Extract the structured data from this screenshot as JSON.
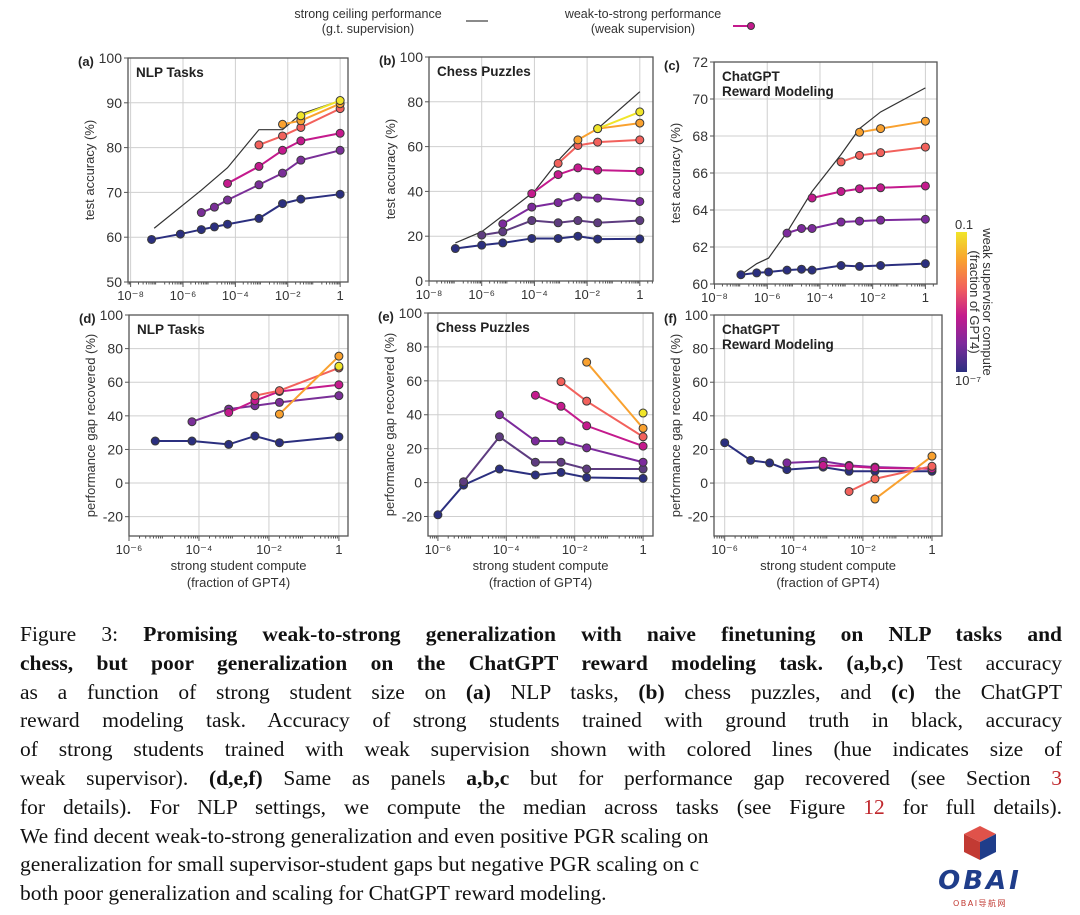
{
  "legend": {
    "ceiling_line1": "strong ceiling performance",
    "ceiling_line2": "(g.t. supervision)",
    "w2s_line1": "weak-to-strong performance",
    "w2s_line2": "(weak supervision)"
  },
  "colorbar": {
    "label_line1": "weak supervisor compute",
    "label_line2": "(fraction of GPT4)",
    "top_label": "0.1",
    "bottom_label": "10⁻⁷",
    "colors": [
      "#f0e52a",
      "#f9a12f",
      "#f2615c",
      "#c41a8d",
      "#7c2a9c",
      "#2b2f7f"
    ]
  },
  "colors": {
    "ceiling": "#333333",
    "marker_edge": "#3a3a3a",
    "grid": "#cfcfcf",
    "frame": "#555555"
  },
  "chart_data": [
    {
      "id": "a",
      "panel_label": "(a)",
      "type": "line",
      "title": "NLP Tasks",
      "ylabel": "test accuracy (%)",
      "xlabel": "",
      "xlabel2": "",
      "x_scale": "log10",
      "xlim_log10": [
        -8.1,
        0.3
      ],
      "ylim": [
        50,
        100
      ],
      "yticks": [
        50,
        60,
        70,
        80,
        90,
        100
      ],
      "xticks_log10": [
        -8,
        -6,
        -4,
        -2,
        0
      ],
      "xtick_labels": [
        "10⁻⁸",
        "10⁻⁶",
        "10⁻⁴",
        "10⁻²",
        "1"
      ],
      "ceiling": {
        "x_log10": [
          -7.1,
          -5.3,
          -4.3,
          -3.1,
          -2.2,
          -1.5,
          0
        ],
        "y": [
          62,
          70.5,
          75.5,
          84,
          84,
          87.5,
          90.5
        ]
      },
      "series": [
        {
          "color": "#2b2f7f",
          "x_log10": [
            -7.2,
            -6.1,
            -5.3,
            -4.8,
            -4.3,
            -3.1,
            -2.2,
            -1.5,
            0
          ],
          "y": [
            59.5,
            60.7,
            61.7,
            62.3,
            62.9,
            64.2,
            67.5,
            68.5,
            69.6
          ]
        },
        {
          "color": "#7a2f98",
          "x_log10": [
            -5.3,
            -4.8,
            -4.3,
            -3.1,
            -2.2,
            -1.5,
            0
          ],
          "y": [
            65.5,
            66.7,
            68.3,
            71.7,
            74.3,
            77.2,
            79.4
          ]
        },
        {
          "color": "#c41a8d",
          "x_log10": [
            -4.3,
            -3.1,
            -2.2,
            -1.5,
            0
          ],
          "y": [
            72,
            75.8,
            79.4,
            81.5,
            83.2
          ]
        },
        {
          "color": "#f2615c",
          "x_log10": [
            -3.1,
            -2.2,
            -1.5,
            0
          ],
          "y": [
            80.6,
            82.6,
            84.5,
            88.7
          ]
        },
        {
          "color": "#f9a12f",
          "x_log10": [
            -2.2,
            -1.5,
            0
          ],
          "y": [
            85.2,
            86,
            89.8
          ]
        },
        {
          "color": "#f0e52a",
          "x_log10": [
            -1.5,
            0
          ],
          "y": [
            87.1,
            90.5
          ]
        }
      ]
    },
    {
      "id": "b",
      "panel_label": "(b)",
      "type": "line",
      "title": "Chess Puzzles",
      "ylabel": "test accuracy (%)",
      "xlabel": "",
      "xlabel2": "",
      "x_scale": "log10",
      "xlim_log10": [
        -8.0,
        0.5
      ],
      "ylim": [
        0,
        100
      ],
      "yticks": [
        0,
        20,
        40,
        60,
        80,
        100
      ],
      "xticks_log10": [
        -8,
        -6,
        -4,
        -2,
        0
      ],
      "xtick_labels": [
        "10⁻⁸",
        "10⁻⁶",
        "10⁻⁴",
        "10⁻²",
        "1"
      ],
      "ceiling": {
        "x_log10": [
          -7,
          -6,
          -4,
          -3,
          -2.35,
          -1.6,
          0
        ],
        "y": [
          17,
          22,
          40,
          55,
          63,
          68,
          84.5
        ]
      },
      "series": [
        {
          "color": "#2b2f7f",
          "x_log10": [
            -7,
            -6,
            -5.2,
            -4.1,
            -3.1,
            -2.35,
            -1.6,
            0
          ],
          "y": [
            14.5,
            16,
            17,
            19,
            19,
            20,
            18.7,
            18.8
          ]
        },
        {
          "color": "#5e3c80",
          "x_log10": [
            -6,
            -5.2,
            -4.1,
            -3.1,
            -2.35,
            -1.6,
            0
          ],
          "y": [
            20.5,
            22,
            27,
            26,
            27,
            26,
            27
          ]
        },
        {
          "color": "#7c2a9c",
          "x_log10": [
            -5.2,
            -4.1,
            -3.1,
            -2.35,
            -1.6,
            0
          ],
          "y": [
            25.5,
            33,
            35,
            37.5,
            37,
            35.5
          ]
        },
        {
          "color": "#c41a8d",
          "x_log10": [
            -4.1,
            -3.1,
            -2.35,
            -1.6,
            0
          ],
          "y": [
            39,
            47.5,
            50.5,
            49.5,
            49
          ]
        },
        {
          "color": "#f2615c",
          "x_log10": [
            -3.1,
            -2.35,
            -1.6,
            0
          ],
          "y": [
            52.5,
            60.5,
            62,
            63
          ]
        },
        {
          "color": "#f9a12f",
          "x_log10": [
            -2.35,
            -1.6,
            0
          ],
          "y": [
            63,
            68,
            70.5
          ]
        },
        {
          "color": "#f0e52a",
          "x_log10": [
            -1.6,
            0
          ],
          "y": [
            68,
            75.5
          ]
        }
      ]
    },
    {
      "id": "c",
      "panel_label": "(c)",
      "type": "line",
      "title": "ChatGPT",
      "title2": "Reward Modeling",
      "ylabel": "test accuracy (%)",
      "xlabel": "",
      "xlabel2": "",
      "x_scale": "log10",
      "xlim_log10": [
        -8.02,
        0.44
      ],
      "ylim": [
        60,
        72
      ],
      "yticks": [
        60,
        62,
        64,
        66,
        68,
        70,
        72
      ],
      "xticks_log10": [
        -8,
        -6,
        -4,
        -2,
        0
      ],
      "xtick_labels": [
        "10⁻⁸",
        "10⁻⁶",
        "10⁻⁴",
        "10⁻²",
        "1"
      ],
      "ceiling": {
        "x_log10": [
          -7,
          -6.4,
          -5.95,
          -5.25,
          -4.3,
          -3.2,
          -2.5,
          -1.7,
          0
        ],
        "y": [
          60.5,
          61.1,
          61.4,
          62.8,
          65,
          67,
          68.4,
          69.3,
          70.6
        ]
      },
      "series": [
        {
          "color": "#2b2f7f",
          "x_log10": [
            -7,
            -6.4,
            -5.95,
            -5.25,
            -4.7,
            -4.3,
            -3.2,
            -2.5,
            -1.7,
            0
          ],
          "y": [
            60.5,
            60.6,
            60.65,
            60.75,
            60.8,
            60.75,
            61.0,
            60.95,
            61.0,
            61.1
          ]
        },
        {
          "color": "#7c2a9c",
          "x_log10": [
            -5.25,
            -4.7,
            -4.3,
            -3.2,
            -2.5,
            -1.7,
            0
          ],
          "y": [
            62.75,
            63.0,
            63.0,
            63.35,
            63.4,
            63.45,
            63.5
          ]
        },
        {
          "color": "#c41a8d",
          "x_log10": [
            -4.3,
            -3.2,
            -2.5,
            -1.7,
            0
          ],
          "y": [
            64.65,
            65.0,
            65.15,
            65.2,
            65.3
          ]
        },
        {
          "color": "#f2615c",
          "x_log10": [
            -3.2,
            -2.5,
            -1.7,
            0
          ],
          "y": [
            66.6,
            66.95,
            67.1,
            67.4
          ]
        },
        {
          "color": "#f9a12f",
          "x_log10": [
            -2.5,
            -1.7,
            0
          ],
          "y": [
            68.2,
            68.4,
            68.8
          ]
        }
      ]
    },
    {
      "id": "d",
      "panel_label": "(d)",
      "type": "line",
      "title": "NLP Tasks",
      "ylabel": "performance gap recovered (%)",
      "xlabel": "strong student compute",
      "xlabel2": "(fraction of GPT4)",
      "x_scale": "log10",
      "xlim_log10": [
        -6.0,
        0.26
      ],
      "ylim": [
        -31.5,
        100
      ],
      "yticks": [
        -20,
        0,
        20,
        40,
        60,
        80,
        100
      ],
      "xticks_log10": [
        -6,
        -4,
        -2,
        0
      ],
      "xtick_labels": [
        "10⁻⁶",
        "10⁻⁴",
        "10⁻²",
        "1"
      ],
      "series": [
        {
          "color": "#2b2f7f",
          "x_log10": [
            -5.25,
            -4.2,
            -3.15,
            -2.4,
            -1.7,
            0
          ],
          "y": [
            25,
            25,
            23,
            28,
            24,
            27.5
          ]
        },
        {
          "color": "#7a2f98",
          "x_log10": [
            -4.2,
            -3.15,
            -2.4,
            -1.7,
            0
          ],
          "y": [
            36.5,
            44,
            46,
            48,
            52
          ]
        },
        {
          "color": "#c41a8d",
          "x_log10": [
            -3.15,
            -2.4,
            -1.7,
            0
          ],
          "y": [
            42,
            49,
            54.5,
            58.5
          ]
        },
        {
          "color": "#f2615c",
          "x_log10": [
            -2.4,
            -1.7,
            0
          ],
          "y": [
            52,
            55,
            68.5
          ]
        },
        {
          "color": "#f9a12f",
          "x_log10": [
            -1.7,
            0
          ],
          "y": [
            41,
            75.5
          ]
        },
        {
          "color": "#f0e52a",
          "x_log10": [
            0
          ],
          "y": [
            69.5
          ]
        }
      ]
    },
    {
      "id": "e",
      "panel_label": "(e)",
      "type": "line",
      "title": "Chess Puzzles",
      "ylabel": "performance gap recovered (%)",
      "xlabel": "strong student compute",
      "xlabel2": "(fraction of GPT4)",
      "x_scale": "log10",
      "xlim_log10": [
        -6.29,
        0.29
      ],
      "ylim": [
        -31.5,
        100
      ],
      "yticks": [
        -20,
        0,
        20,
        40,
        60,
        80,
        100
      ],
      "xticks_log10": [
        -6,
        -4,
        -2,
        0
      ],
      "xtick_labels": [
        "10⁻⁶",
        "10⁻⁴",
        "10⁻²",
        "1"
      ],
      "series": [
        {
          "color": "#2b2f7f",
          "x_log10": [
            -6,
            -5.25,
            -4.2,
            -3.15,
            -2.4,
            -1.65,
            0
          ],
          "y": [
            -19,
            -1.5,
            8,
            4.5,
            6,
            3,
            2.5
          ]
        },
        {
          "color": "#5e3c80",
          "x_log10": [
            -5.25,
            -4.2,
            -3.15,
            -2.4,
            -1.65,
            0
          ],
          "y": [
            0.5,
            27,
            12,
            12,
            8,
            8
          ]
        },
        {
          "color": "#7c2a9c",
          "x_log10": [
            -4.2,
            -3.15,
            -2.4,
            -1.65,
            0
          ],
          "y": [
            40,
            24.5,
            24.5,
            20.5,
            12
          ]
        },
        {
          "color": "#c41a8d",
          "x_log10": [
            -3.15,
            -2.4,
            -1.65,
            0
          ],
          "y": [
            51.5,
            45,
            33.5,
            21.5
          ]
        },
        {
          "color": "#f2615c",
          "x_log10": [
            -2.4,
            -1.65,
            0
          ],
          "y": [
            59.5,
            48,
            27
          ]
        },
        {
          "color": "#f9a12f",
          "x_log10": [
            -1.65,
            0
          ],
          "y": [
            71,
            32
          ]
        },
        {
          "color": "#f0e52a",
          "x_log10": [
            0
          ],
          "y": [
            41
          ]
        }
      ]
    },
    {
      "id": "f",
      "panel_label": "(f)",
      "type": "line",
      "title": "ChatGPT",
      "title2": "Reward Modeling",
      "ylabel": "performance gap recovered (%)",
      "xlabel": "strong student compute",
      "xlabel2": "(fraction of GPT4)",
      "x_scale": "log10",
      "xlim_log10": [
        -6.31,
        0.29
      ],
      "ylim": [
        -31.5,
        100
      ],
      "yticks": [
        -20,
        0,
        20,
        40,
        60,
        80,
        100
      ],
      "xticks_log10": [
        -6,
        -4,
        -2,
        0
      ],
      "xtick_labels": [
        "10⁻⁶",
        "10⁻⁴",
        "10⁻²",
        "1"
      ],
      "series": [
        {
          "color": "#2b2f7f",
          "x_log10": [
            -6,
            -5.25,
            -4.7,
            -4.2,
            -3.15,
            -2.4,
            -1.65,
            0
          ],
          "y": [
            24,
            13.5,
            12,
            8,
            9.5,
            7,
            7,
            7
          ]
        },
        {
          "color": "#7c2a9c",
          "x_log10": [
            -4.2,
            -3.15,
            -2.4,
            -1.65,
            0
          ],
          "y": [
            12,
            13,
            10.5,
            9.5,
            8.5
          ]
        },
        {
          "color": "#c41a8d",
          "x_log10": [
            -3.15,
            -2.4,
            -1.65,
            0
          ],
          "y": [
            10.5,
            10,
            9,
            8.5
          ]
        },
        {
          "color": "#f2615c",
          "x_log10": [
            -2.4,
            -1.65,
            0
          ],
          "y": [
            -5,
            2.5,
            10
          ]
        },
        {
          "color": "#f9a12f",
          "x_log10": [
            -1.65,
            0
          ],
          "y": [
            -9.5,
            16
          ]
        }
      ]
    }
  ],
  "caption": {
    "lines": [
      [
        {
          "t": "Figure 3: ",
          "s": ""
        },
        {
          "t": "Promising weak-to-strong generalization with naive finetuning on NLP tasks and",
          "s": "b"
        }
      ],
      [
        {
          "t": "chess, but poor generalization on the ChatGPT reward modeling task. (a,b,c)",
          "s": "b"
        },
        {
          "t": " Test accuracy",
          "s": ""
        }
      ],
      [
        {
          "t": "as a function of strong student size on ",
          "s": ""
        },
        {
          "t": "(a)",
          "s": "b"
        },
        {
          "t": " NLP tasks, ",
          "s": ""
        },
        {
          "t": "(b)",
          "s": "b"
        },
        {
          "t": " chess puzzles, and ",
          "s": ""
        },
        {
          "t": "(c)",
          "s": "b"
        },
        {
          "t": " the ChatGPT",
          "s": ""
        }
      ],
      [
        {
          "t": "reward modeling task.  Accuracy of strong students trained with ground truth in black, accuracy",
          "s": ""
        }
      ],
      [
        {
          "t": "of strong students trained with weak supervision shown with colored lines (hue indicates size of",
          "s": ""
        }
      ],
      [
        {
          "t": "weak supervisor). ",
          "s": ""
        },
        {
          "t": "(d,e,f)",
          "s": "b"
        },
        {
          "t": " Same as panels ",
          "s": ""
        },
        {
          "t": "a,b,c",
          "s": "b"
        },
        {
          "t": " but for performance gap recovered (see Section ",
          "s": ""
        },
        {
          "t": "3",
          "s": "r"
        }
      ],
      [
        {
          "t": "for details). For NLP settings, we compute the median across tasks (see Figure ",
          "s": ""
        },
        {
          "t": "12",
          "s": "r"
        },
        {
          "t": " for full details).",
          "s": ""
        }
      ],
      [
        {
          "t": "We find decent weak-to-strong generalization and even positive PGR scaling on ",
          "s": ""
        }
      ],
      [
        {
          "t": "generalization for small supervisor-student gaps but negative PGR scaling on c",
          "s": ""
        }
      ],
      [
        {
          "t": "both poor generalization and scaling for ChatGPT reward modeling.",
          "s": ""
        }
      ]
    ]
  },
  "watermark": {
    "logo_text": "OBAI",
    "sub_text": "OBAI导航网"
  }
}
